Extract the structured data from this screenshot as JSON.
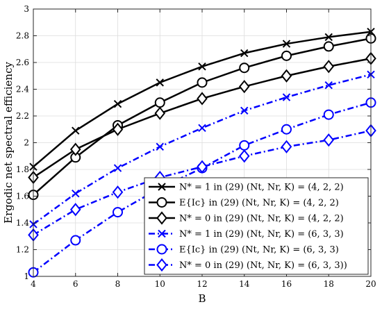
{
  "chart_data": {
    "type": "line",
    "xlabel": "B",
    "ylabel": "Ergodic net spectral efficiency",
    "xlim": [
      4,
      20
    ],
    "ylim": [
      1,
      3
    ],
    "xticks": [
      "4",
      "6",
      "8",
      "10",
      "12",
      "14",
      "16",
      "18",
      "20"
    ],
    "yticks": [
      "1",
      "1.2",
      "1.4",
      "1.6",
      "1.8",
      "2",
      "2.2",
      "2.4",
      "2.6",
      "2.8",
      "3"
    ],
    "grid": true,
    "legend_position": "bottom-right",
    "x": [
      4,
      6,
      8,
      10,
      12,
      14,
      16,
      18,
      20
    ],
    "series": [
      {
        "name": "N* = 1 in (29) (N_t, N_r, K) = (4,2,2)",
        "legend_label": "N* = 1 in (29) (Nt, Nr, K) = (4, 2, 2)",
        "color": "#000000",
        "dash": "solid",
        "marker": "x",
        "values": [
          1.82,
          2.09,
          2.29,
          2.45,
          2.57,
          2.67,
          2.74,
          2.79,
          2.83
        ]
      },
      {
        "name": "E{I_c} in (29) (N_t, N_r, K) = (4,2,2)",
        "legend_label": "E{Ic} in (29) (Nt, Nr, K) = (4, 2, 2)",
        "color": "#000000",
        "dash": "solid",
        "marker": "circle",
        "values": [
          1.61,
          1.89,
          2.13,
          2.3,
          2.45,
          2.56,
          2.65,
          2.72,
          2.78
        ]
      },
      {
        "name": "N* = 0 in (29) (N_t, N_r, K) = (4,2,2)",
        "legend_label": "N* = 0 in (29) (Nt, Nr, K) = (4, 2, 2)",
        "color": "#000000",
        "dash": "solid",
        "marker": "diamond",
        "values": [
          1.74,
          1.95,
          2.1,
          2.22,
          2.33,
          2.42,
          2.5,
          2.57,
          2.63
        ]
      },
      {
        "name": "N* = 1 in (29) (N_t, N_r, K) = (6,3,3)",
        "legend_label": "N* = 1 in (29) (Nt, Nr, K) = (6, 3, 3)",
        "color": "#0000ff",
        "dash": "dashdot",
        "marker": "x",
        "values": [
          1.39,
          1.62,
          1.81,
          1.97,
          2.11,
          2.24,
          2.34,
          2.43,
          2.51
        ]
      },
      {
        "name": "E{I_c} in (29) (N_t, N_r, K) = (6,3,3)",
        "legend_label": "E{Ic} in (29) (Nt, Nr, K) = (6, 3, 3)",
        "color": "#0000ff",
        "dash": "dashdot",
        "marker": "circle",
        "values": [
          1.03,
          1.27,
          1.48,
          1.66,
          1.81,
          1.98,
          2.1,
          2.21,
          2.3
        ]
      },
      {
        "name": "N* = 0 in (29) (N_t, N_r, K) = (6,3,3)",
        "legend_label": "N* = 0 in (29) (Nt, Nr, K) = (6, 3, 3))",
        "color": "#0000ff",
        "dash": "dashdot",
        "marker": "diamond",
        "values": [
          1.31,
          1.5,
          1.63,
          1.74,
          1.82,
          1.9,
          1.97,
          2.02,
          2.09
        ]
      }
    ]
  }
}
